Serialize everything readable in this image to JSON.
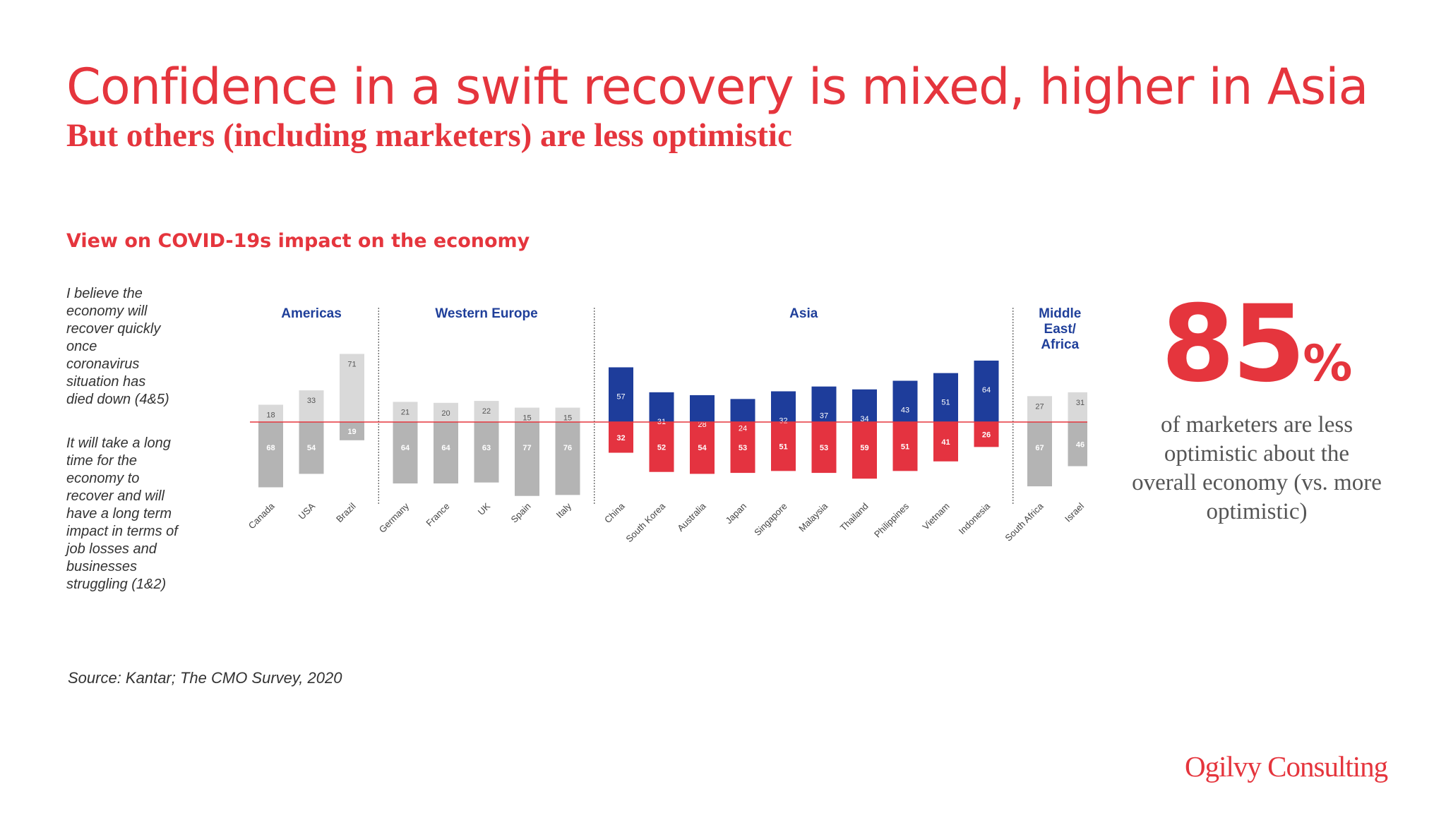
{
  "title": "Confidence in a swift recovery is mixed, higher in Asia",
  "subtitle": "But others (including marketers) are less optimistic",
  "colors": {
    "brand_red": "#e5353d",
    "navy": "#1f3f9a",
    "blue_bar": "#1e3d9b",
    "red_bar": "#e43340",
    "grey_positive": "#d9d9d9",
    "grey_negative": "#b4b4b4",
    "text": "#333333"
  },
  "chart_data": {
    "type": "bar",
    "title": "View on COVID-19s impact on the economy",
    "statements": {
      "positive": "I believe the economy will recover quickly once coronavirus situation has died down (4&5)",
      "negative": "It will take a long time for the economy to recover and will have a long term impact in terms of job losses and businesses struggling (1&2)"
    },
    "regions": [
      {
        "name": "Americas",
        "countries": [
          {
            "name": "Canada",
            "positive": 18,
            "negative": 68
          },
          {
            "name": "USA",
            "positive": 33,
            "negative": 54
          },
          {
            "name": "Brazil",
            "positive": 71,
            "negative": 19
          }
        ]
      },
      {
        "name": "Western Europe",
        "countries": [
          {
            "name": "Germany",
            "positive": 21,
            "negative": 64
          },
          {
            "name": "France",
            "positive": 20,
            "negative": 64
          },
          {
            "name": "UK",
            "positive": 22,
            "negative": 63
          },
          {
            "name": "Spain",
            "positive": 15,
            "negative": 77
          },
          {
            "name": "Italy",
            "positive": 15,
            "negative": 76
          }
        ]
      },
      {
        "name": "Asia",
        "countries": [
          {
            "name": "China",
            "positive": 57,
            "negative": 32
          },
          {
            "name": "South Korea",
            "positive": 31,
            "negative": 52
          },
          {
            "name": "Australia",
            "positive": 28,
            "negative": 54
          },
          {
            "name": "Japan",
            "positive": 24,
            "negative": 53
          },
          {
            "name": "Singapore",
            "positive": 32,
            "negative": 51
          },
          {
            "name": "Malaysia",
            "positive": 37,
            "negative": 53
          },
          {
            "name": "Thailand",
            "positive": 34,
            "negative": 59
          },
          {
            "name": "Philippines",
            "positive": 43,
            "negative": 51
          },
          {
            "name": "Vietnam",
            "positive": 51,
            "negative": 41
          },
          {
            "name": "Indonesia",
            "positive": 64,
            "negative": 26
          }
        ]
      },
      {
        "name": "Middle East/ Africa",
        "name_lines": [
          "Middle",
          "East/",
          "Africa"
        ],
        "countries": [
          {
            "name": "South Africa",
            "positive": 27,
            "negative": 67
          },
          {
            "name": "Israel",
            "positive": 31,
            "negative": 46
          }
        ]
      }
    ]
  },
  "highlight": {
    "value": "85",
    "unit": "%",
    "caption": "of marketers are less optimistic about the overall economy (vs. more optimistic)"
  },
  "source": "Source: Kantar; The CMO Survey, 2020",
  "brand": "Ogilvy Consulting"
}
